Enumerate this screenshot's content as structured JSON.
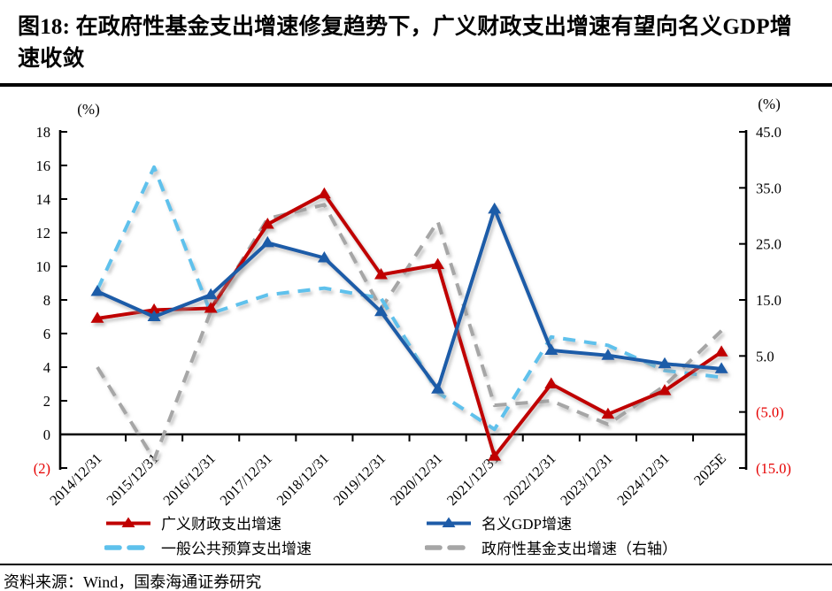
{
  "figure": {
    "title": "图18:  在政府性基金支出增速修复趋势下，广义财政支出增速有望向名义GDP增速收敛",
    "source": "资料来源：Wind，国泰海通证券研究"
  },
  "chart_data": {
    "type": "line",
    "categories": [
      "2014/12/31",
      "2015/12/31",
      "2016/12/31",
      "2017/12/31",
      "2018/12/31",
      "2019/12/31",
      "2020/12/31",
      "2021/12/31",
      "2022/12/31",
      "2023/12/31",
      "2024/12/31",
      "2025E"
    ],
    "left_axis": {
      "unit": "(%)",
      "min": -2,
      "max": 18,
      "step": 2,
      "tick_format": "integer",
      "negative_color": "#e60000"
    },
    "right_axis": {
      "unit": "(%)",
      "min": -15,
      "max": 45,
      "step": 10,
      "tick_format": "one_decimal",
      "negative_color": "#e60000"
    },
    "grid": false,
    "legend_position": "bottom",
    "series": [
      {
        "name": "广义财政支出增速",
        "axis": "left",
        "color": "#c00000",
        "style": "solid",
        "marker": "triangle",
        "values": [
          6.9,
          7.4,
          7.5,
          12.5,
          14.3,
          9.5,
          10.1,
          -1.3,
          3.0,
          1.2,
          2.6,
          4.9
        ]
      },
      {
        "name": "名义GDP增速",
        "axis": "left",
        "color": "#1e5ca8",
        "style": "solid",
        "marker": "triangle",
        "values": [
          8.5,
          7.0,
          8.3,
          11.4,
          10.5,
          7.3,
          2.7,
          13.4,
          5.0,
          4.7,
          4.2,
          3.9
        ]
      },
      {
        "name": "一般公共预算支出增速",
        "axis": "left",
        "color": "#5ec1ec",
        "style": "dashed",
        "marker": "none",
        "values": [
          8.6,
          15.9,
          7.2,
          8.3,
          8.7,
          8.1,
          2.5,
          0.3,
          5.8,
          5.3,
          3.8,
          3.4
        ]
      },
      {
        "name": "政府性基金支出增速（右轴）",
        "axis": "right",
        "color": "#a6a6a6",
        "style": "dashed",
        "marker": "none",
        "values": [
          3.0,
          -13.5,
          13.0,
          29.5,
          32.0,
          13.4,
          29.0,
          -3.8,
          -3.0,
          -7.2,
          -0.3,
          9.5
        ]
      }
    ]
  }
}
